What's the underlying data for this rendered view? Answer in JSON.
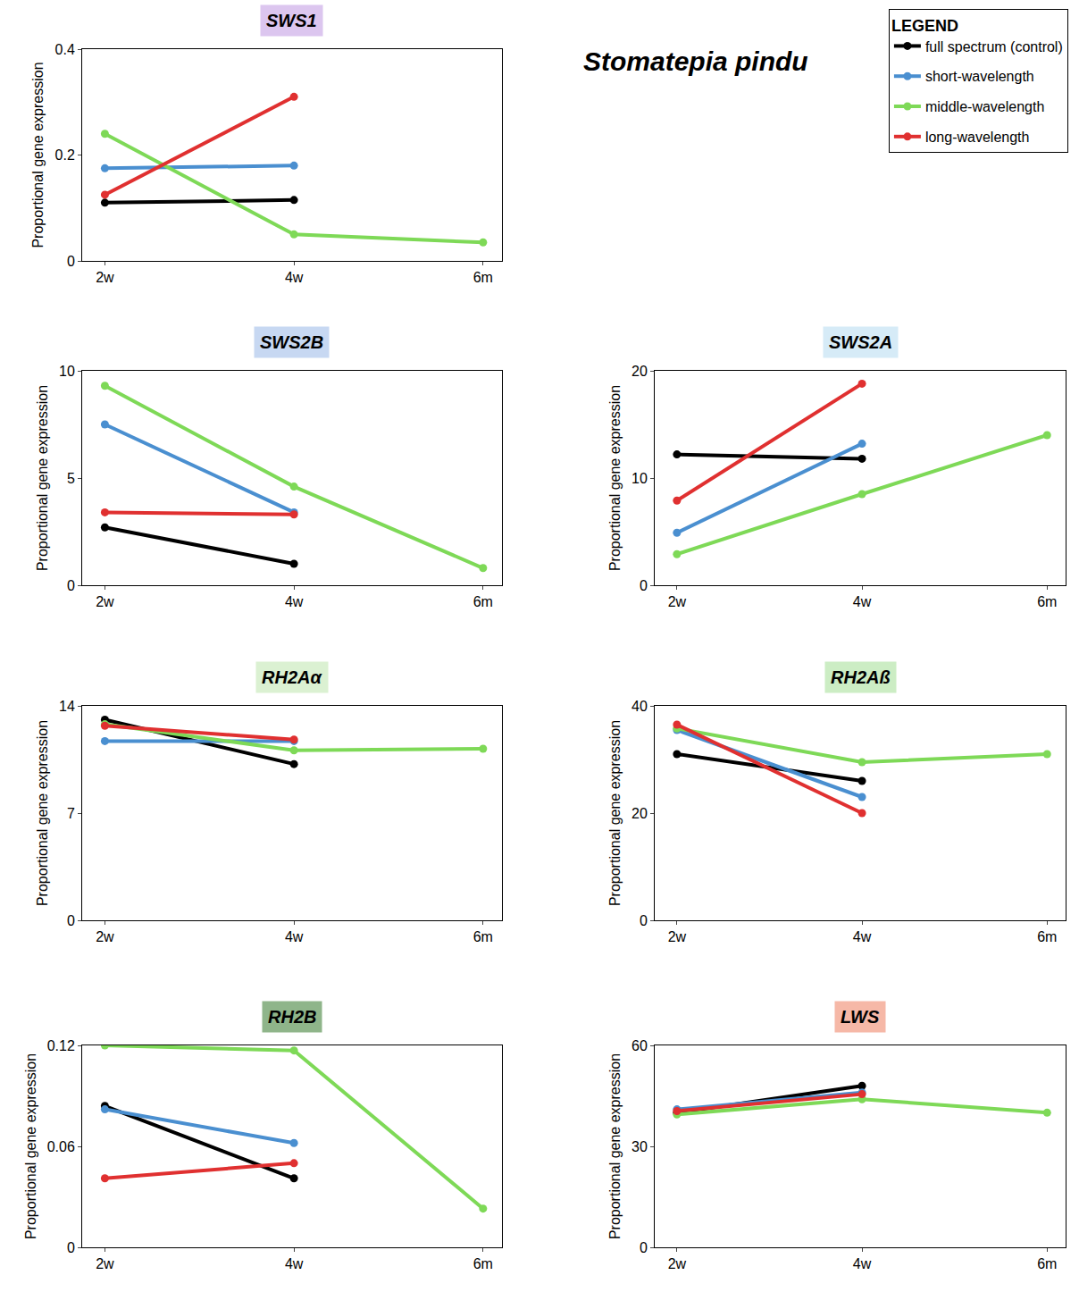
{
  "title": "Stomatepia pindu",
  "legend_title": "LEGEND",
  "legend": "upper right",
  "chart_data": [
    {
      "type": "line",
      "title": "SWS1",
      "y_label": "Proportional gene expression",
      "categories": [
        "2w",
        "4w",
        "6m"
      ],
      "ylim": [
        0,
        0.4
      ],
      "yticks": [
        0,
        0.2,
        0.4
      ],
      "grid": false,
      "marker": "circle",
      "series": [
        {
          "name": "full spectrum (control)",
          "color": "#000000",
          "values": [
            0.11,
            0.115,
            null
          ]
        },
        {
          "name": "short-wavelength",
          "color": "#4a8fd0",
          "values": [
            0.175,
            0.18,
            null
          ]
        },
        {
          "name": "middle-wavelength",
          "color": "#7ed957",
          "values": [
            0.24,
            0.05,
            0.035
          ]
        },
        {
          "name": "long-wavelength",
          "color": "#e03030",
          "values": [
            0.125,
            0.31,
            null
          ]
        }
      ]
    },
    {
      "type": "line",
      "title": "SWS2B",
      "y_label": "Proportional gene expression",
      "categories": [
        "2w",
        "4w",
        "6m"
      ],
      "ylim": [
        0,
        10
      ],
      "yticks": [
        0,
        5,
        10
      ],
      "grid": false,
      "marker": "circle",
      "series": [
        {
          "name": "full spectrum (control)",
          "color": "#000000",
          "values": [
            2.7,
            1.0,
            null
          ]
        },
        {
          "name": "short-wavelength",
          "color": "#4a8fd0",
          "values": [
            7.5,
            3.4,
            null
          ]
        },
        {
          "name": "middle-wavelength",
          "color": "#7ed957",
          "values": [
            9.3,
            4.6,
            0.8
          ]
        },
        {
          "name": "long-wavelength",
          "color": "#e03030",
          "values": [
            3.4,
            3.3,
            null
          ]
        }
      ]
    },
    {
      "type": "line",
      "title": "SWS2A",
      "y_label": "Proportional gene expression",
      "categories": [
        "2w",
        "4w",
        "6m"
      ],
      "ylim": [
        0,
        20
      ],
      "yticks": [
        0,
        10,
        20
      ],
      "grid": false,
      "marker": "circle",
      "series": [
        {
          "name": "full spectrum (control)",
          "color": "#000000",
          "values": [
            12.2,
            11.8,
            null
          ]
        },
        {
          "name": "short-wavelength",
          "color": "#4a8fd0",
          "values": [
            4.9,
            13.2,
            null
          ]
        },
        {
          "name": "middle-wavelength",
          "color": "#7ed957",
          "values": [
            2.9,
            8.5,
            14
          ]
        },
        {
          "name": "long-wavelength",
          "color": "#e03030",
          "values": [
            7.9,
            18.8,
            null
          ]
        }
      ]
    },
    {
      "type": "line",
      "title": "RH2Aα",
      "y_label": "Proportional gene expression",
      "categories": [
        "2w",
        "4w",
        "6m"
      ],
      "ylim": [
        0,
        14
      ],
      "yticks": [
        0,
        7,
        14
      ],
      "grid": false,
      "marker": "circle",
      "series": [
        {
          "name": "full spectrum (control)",
          "color": "#000000",
          "values": [
            13.1,
            10.2,
            null
          ]
        },
        {
          "name": "short-wavelength",
          "color": "#4a8fd0",
          "values": [
            11.7,
            11.7,
            null
          ]
        },
        {
          "name": "middle-wavelength",
          "color": "#7ed957",
          "values": [
            12.8,
            11.1,
            11.2
          ]
        },
        {
          "name": "long-wavelength",
          "color": "#e03030",
          "values": [
            12.7,
            11.8,
            null
          ]
        }
      ]
    },
    {
      "type": "line",
      "title": "RH2Aß",
      "y_label": "Proportional gene expression",
      "categories": [
        "2w",
        "4w",
        "6m"
      ],
      "ylim": [
        0,
        40
      ],
      "yticks": [
        0,
        20,
        40
      ],
      "grid": false,
      "marker": "circle",
      "series": [
        {
          "name": "full spectrum (control)",
          "color": "#000000",
          "values": [
            31,
            26,
            null
          ]
        },
        {
          "name": "short-wavelength",
          "color": "#4a8fd0",
          "values": [
            35.5,
            23,
            null
          ]
        },
        {
          "name": "middle-wavelength",
          "color": "#7ed957",
          "values": [
            35.8,
            29.5,
            31
          ]
        },
        {
          "name": "long-wavelength",
          "color": "#e03030",
          "values": [
            36.5,
            20,
            null
          ]
        }
      ]
    },
    {
      "type": "line",
      "title": "RH2B",
      "y_label": "Proportional gene expression",
      "categories": [
        "2w",
        "4w",
        "6m"
      ],
      "ylim": [
        0,
        0.12
      ],
      "yticks": [
        0,
        0.06,
        0.12
      ],
      "grid": false,
      "marker": "circle",
      "series": [
        {
          "name": "full spectrum (control)",
          "color": "#000000",
          "values": [
            0.084,
            0.041,
            null
          ]
        },
        {
          "name": "short-wavelength",
          "color": "#4a8fd0",
          "values": [
            0.082,
            0.062,
            null
          ]
        },
        {
          "name": "middle-wavelength",
          "color": "#7ed957",
          "values": [
            0.12,
            0.117,
            0.023
          ]
        },
        {
          "name": "long-wavelength",
          "color": "#e03030",
          "values": [
            0.041,
            0.05,
            null
          ]
        }
      ]
    },
    {
      "type": "line",
      "title": "LWS",
      "y_label": "Proportional gene expression",
      "categories": [
        "2w",
        "4w",
        "6m"
      ],
      "ylim": [
        0,
        60
      ],
      "yticks": [
        0,
        30,
        60
      ],
      "grid": false,
      "marker": "circle",
      "series": [
        {
          "name": "full spectrum (control)",
          "color": "#000000",
          "values": [
            40,
            48,
            null
          ]
        },
        {
          "name": "short-wavelength",
          "color": "#4a8fd0",
          "values": [
            41,
            46,
            null
          ]
        },
        {
          "name": "middle-wavelength",
          "color": "#7ed957",
          "values": [
            39.5,
            44,
            40
          ]
        },
        {
          "name": "long-wavelength",
          "color": "#e03030",
          "values": [
            40.5,
            45.5,
            null
          ]
        }
      ]
    }
  ]
}
